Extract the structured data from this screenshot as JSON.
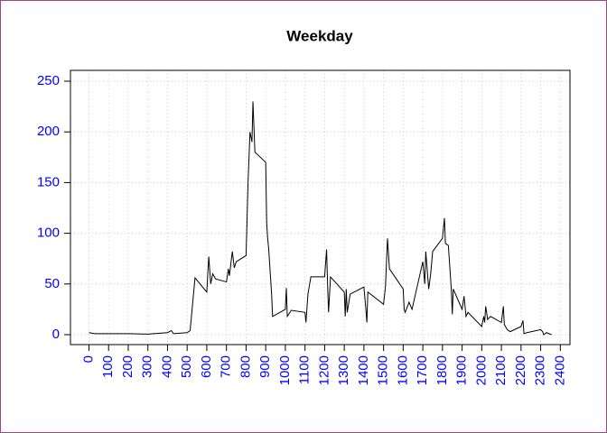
{
  "chart_data": {
    "type": "line",
    "title": "Weekday",
    "x": [
      0,
      30,
      100,
      200,
      300,
      400,
      420,
      430,
      500,
      515,
      530,
      540,
      600,
      610,
      620,
      630,
      645,
      700,
      710,
      715,
      730,
      740,
      750,
      800,
      810,
      820,
      830,
      835,
      840,
      845,
      900,
      905,
      910,
      915,
      930,
      935,
      1000,
      1005,
      1010,
      1030,
      1100,
      1105,
      1115,
      1130,
      1200,
      1210,
      1215,
      1220,
      1230,
      1300,
      1305,
      1310,
      1315,
      1330,
      1400,
      1410,
      1415,
      1420,
      1500,
      1510,
      1520,
      1530,
      1600,
      1605,
      1610,
      1630,
      1645,
      1700,
      1710,
      1715,
      1730,
      1740,
      1750,
      1800,
      1810,
      1815,
      1830,
      1845,
      1850,
      1855,
      1900,
      1910,
      1920,
      1930,
      2000,
      2010,
      2015,
      2020,
      2030,
      2045,
      2100,
      2110,
      2115,
      2130,
      2145,
      2200,
      2210,
      2215,
      2230,
      2300,
      2310,
      2315,
      2330,
      2355
    ],
    "series": [
      {
        "color": "#000000",
        "values": [
          2,
          1,
          1,
          1,
          0.5,
          2,
          4,
          1,
          2,
          4,
          35,
          56,
          42,
          77,
          50,
          60,
          55,
          52,
          65,
          58,
          82,
          66,
          72,
          78,
          150,
          200,
          190,
          230,
          205,
          180,
          170,
          110,
          95,
          85,
          40,
          18,
          25,
          46,
          18,
          24,
          22,
          12,
          40,
          57,
          57,
          84,
          50,
          22,
          57,
          42,
          18,
          45,
          22,
          40,
          47,
          25,
          12,
          42,
          30,
          48,
          95,
          65,
          45,
          25,
          22,
          32,
          25,
          72,
          50,
          82,
          45,
          60,
          82,
          95,
          115,
          90,
          88,
          45,
          20,
          45,
          25,
          38,
          18,
          22,
          8,
          18,
          12,
          28,
          15,
          18,
          12,
          28,
          10,
          5,
          3,
          8,
          14,
          1,
          2,
          5,
          3,
          0,
          2,
          0
        ]
      }
    ],
    "xlim": [
      -94.2,
      2449.2
    ],
    "ylim": [
      -9.8,
      260.7
    ],
    "xticks": [
      0,
      100,
      200,
      300,
      400,
      500,
      600,
      700,
      800,
      900,
      1000,
      1100,
      1200,
      1300,
      1400,
      1500,
      1600,
      1700,
      1800,
      1900,
      2000,
      2100,
      2200,
      2300,
      2400
    ],
    "yticks": [
      0,
      50,
      100,
      150,
      200,
      250
    ],
    "grid": true,
    "tick_color": "#0000ff"
  }
}
